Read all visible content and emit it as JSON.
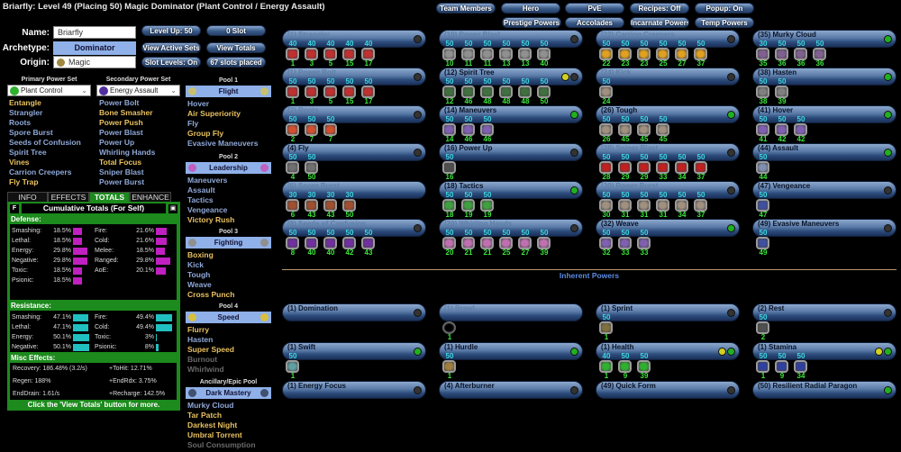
{
  "title": "Briarfly: Level 49 (Placing 50) Magic Dominator (Plant Control / Energy Assault)",
  "header": {
    "name_label": "Name:",
    "name_value": "Briarfly",
    "archetype_label": "Archetype:",
    "archetype": "Dominator",
    "origin_label": "Origin:",
    "origin": "Magic",
    "buttons": [
      "Level Up: 50",
      "0 Slot",
      "View Active Sets",
      "View Totals",
      "Slot Levels: On",
      "67 slots placed"
    ]
  },
  "top_buttons": [
    "Team Members",
    "Hero",
    "PvE",
    "Recipes: Off",
    "Popup: On",
    "Prestige Powers",
    "Accolades",
    "Incarnate Powers",
    "Temp Powers"
  ],
  "primary": {
    "header": "Primary Power Set",
    "set": "Plant Control",
    "color": "#30b030",
    "powers": [
      [
        "Entangle",
        "pick"
      ],
      [
        "Strangler",
        "avail"
      ],
      [
        "Roots",
        "avail"
      ],
      [
        "Spore Burst",
        "avail"
      ],
      [
        "Seeds of Confusion",
        "avail"
      ],
      [
        "Spirit Tree",
        "avail"
      ],
      [
        "Vines",
        "pick"
      ],
      [
        "Carrion Creepers",
        "avail"
      ],
      [
        "Fly Trap",
        "pick"
      ]
    ]
  },
  "secondary": {
    "header": "Secondary Power Set",
    "set": "Energy Assault",
    "color": "#5030a0",
    "powers": [
      [
        "Power Bolt",
        "avail"
      ],
      [
        "Bone Smasher",
        "pick"
      ],
      [
        "Power Push",
        "pick"
      ],
      [
        "Power Blast",
        "avail"
      ],
      [
        "Power Up",
        "avail"
      ],
      [
        "Whirling Hands",
        "avail"
      ],
      [
        "Total Focus",
        "pick"
      ],
      [
        "Sniper Blast",
        "avail"
      ],
      [
        "Power Burst",
        "avail"
      ]
    ]
  },
  "pools": [
    {
      "header": "Pool 1",
      "set": "Flight",
      "icon_color": "#c8c070",
      "powers": [
        [
          "Hover",
          "avail"
        ],
        [
          "Air Superiority",
          "pick"
        ],
        [
          "Fly",
          "avail"
        ],
        [
          "Group Fly",
          "pick"
        ],
        [
          "Evasive Maneuvers",
          "avail"
        ]
      ]
    },
    {
      "header": "Pool 2",
      "set": "Leadership",
      "icon_color": "#c060c0",
      "powers": [
        [
          "Maneuvers",
          "avail"
        ],
        [
          "Assault",
          "avail"
        ],
        [
          "Tactics",
          "avail"
        ],
        [
          "Vengeance",
          "avail"
        ],
        [
          "Victory Rush",
          "pick"
        ]
      ]
    },
    {
      "header": "Pool 3",
      "set": "Fighting",
      "icon_color": "#909090",
      "powers": [
        [
          "Boxing",
          "pick"
        ],
        [
          "Kick",
          "avail"
        ],
        [
          "Tough",
          "avail"
        ],
        [
          "Weave",
          "avail"
        ],
        [
          "Cross Punch",
          "pick"
        ]
      ]
    },
    {
      "header": "Pool 4",
      "set": "Speed",
      "icon_color": "#d8c040",
      "powers": [
        [
          "Flurry",
          "pick"
        ],
        [
          "Hasten",
          "avail"
        ],
        [
          "Super Speed",
          "pick"
        ],
        [
          "Burnout",
          "na"
        ],
        [
          "Whirlwind",
          "na"
        ]
      ]
    },
    {
      "header": "Ancillary/Epic Pool",
      "set": "Dark Mastery",
      "icon_color": "#405070",
      "powers": [
        [
          "Murky Cloud",
          "avail"
        ],
        [
          "Tar Patch",
          "pick"
        ],
        [
          "Darkest Night",
          "pick"
        ],
        [
          "Umbral Torrent",
          "pick"
        ],
        [
          "Soul Consumption",
          "na"
        ]
      ]
    }
  ],
  "tabs": [
    "INFO",
    "EFFECTS",
    "TOTALS",
    "ENHANCE"
  ],
  "totals": {
    "title": "Cumulative Totals (For Self)",
    "f_button": "F",
    "defense_label": "Defense:",
    "resistance_label": "Resistance:",
    "misc_label": "Misc Effects:",
    "footer": "Click the 'View Totals' button for more.",
    "defense_color": "#c020c0",
    "resistance_color": "#20c0c0",
    "defense": [
      [
        "Smashing:",
        "18.5%",
        18.5
      ],
      [
        "Lethal:",
        "18.5%",
        18.5
      ],
      [
        "Energy:",
        "29.8%",
        29.8
      ],
      [
        "Negative:",
        "29.8%",
        29.8
      ],
      [
        "Toxic:",
        "18.5%",
        18.5
      ],
      [
        "Psionic:",
        "18.5%",
        18.5
      ],
      [
        "Fire:",
        "21.6%",
        21.6
      ],
      [
        "Cold:",
        "21.6%",
        21.6
      ],
      [
        "Melee:",
        "18.5%",
        18.5
      ],
      [
        "Ranged:",
        "29.8%",
        29.8
      ],
      [
        "AoE:",
        "20.1%",
        20.1
      ]
    ],
    "resistance": [
      [
        "Smashing:",
        "47.1%",
        47.1
      ],
      [
        "Lethal:",
        "47.1%",
        47.1
      ],
      [
        "Energy:",
        "50.1%",
        50.1
      ],
      [
        "Negative:",
        "50.1%",
        50.1
      ],
      [
        "Fire:",
        "49.4%",
        49.4
      ],
      [
        "Cold:",
        "49.4%",
        49.4
      ],
      [
        "Toxic:",
        "3%",
        3
      ],
      [
        "Psionic:",
        "8%",
        8
      ]
    ],
    "misc": [
      "Recovery: 186.48% (3.2/s)",
      "+ToHit: 12.71%",
      "Regen: 188%",
      "+EndRdx: 3.75%",
      "EndDrain: 1.61/s",
      "+Recharge: 142.5%"
    ]
  },
  "inherent_label": "Inherent Powers",
  "power_slots": [
    {
      "name": "(1) Strangler",
      "dim": true,
      "ind": [
        "#333"
      ],
      "color": "#c03030",
      "slots": [
        [
          40,
          1
        ],
        [
          40,
          3
        ],
        [
          40,
          5
        ],
        [
          40,
          15
        ],
        [
          40,
          17
        ]
      ]
    },
    {
      "name": "(1) Power Bolt",
      "dim": true,
      "ind": [
        "#333"
      ],
      "color": "#c03030",
      "slots": [
        [
          50,
          1
        ],
        [
          50,
          3
        ],
        [
          50,
          5
        ],
        [
          50,
          15
        ],
        [
          50,
          17
        ]
      ]
    },
    {
      "name": "(2) Roots",
      "dim": true,
      "ind": [
        "#333"
      ],
      "color": "#d05030",
      "slots": [
        [
          50,
          2
        ],
        [
          50,
          7
        ],
        [
          50,
          7
        ]
      ]
    },
    {
      "name": "(4) Fly",
      "dim": false,
      "ind": [
        "#333"
      ],
      "color": "#707070",
      "slots": [
        [
          50,
          4
        ],
        [
          50,
          50
        ]
      ]
    },
    {
      "name": "(6) Spore Burst",
      "dim": true,
      "ind": [],
      "color": "#a05030",
      "slots": [
        [
          30,
          6
        ],
        [
          30,
          43
        ],
        [
          30,
          43
        ],
        [
          30,
          50
        ]
      ]
    },
    {
      "name": "(8) Seeds of Confusion",
      "dim": true,
      "ind": [
        "#333"
      ],
      "color": "#7030a0",
      "slots": [
        [
          50,
          8
        ],
        [
          50,
          40
        ],
        [
          50,
          40
        ],
        [
          50,
          42
        ],
        [
          50,
          43
        ]
      ]
    },
    {
      "name": "(10) Power Blast",
      "dim": true,
      "ind": [
        "#333"
      ],
      "color": "#909090",
      "slots": [
        [
          50,
          10
        ],
        [
          50,
          11
        ],
        [
          50,
          11
        ],
        [
          50,
          13
        ],
        [
          50,
          13
        ],
        [
          50,
          40
        ]
      ]
    },
    {
      "name": "(12) Spirit Tree",
      "dim": false,
      "ind": [
        "#d0d020",
        "#333"
      ],
      "color": "#407040",
      "slots": [
        [
          50,
          12
        ],
        [
          50,
          46
        ],
        [
          50,
          48
        ],
        [
          50,
          48
        ],
        [
          50,
          48
        ],
        [
          50,
          50
        ]
      ]
    },
    {
      "name": "(14) Maneuvers",
      "dim": false,
      "ind": [
        "#20b020"
      ],
      "color": "#8060b0",
      "slots": [
        [
          50,
          14
        ],
        [
          50,
          46
        ],
        [
          50,
          46
        ]
      ]
    },
    {
      "name": "(16) Power Up",
      "dim": false,
      "ind": [
        "#333"
      ],
      "color": "#505050",
      "slots": [
        [
          50,
          16
        ]
      ]
    },
    {
      "name": "(18) Tactics",
      "dim": false,
      "ind": [
        "#20b020"
      ],
      "color": "#40a040",
      "slots": [
        [
          50,
          18
        ],
        [
          50,
          19
        ],
        [
          50,
          19
        ]
      ]
    },
    {
      "name": "(20) Whirling Hands",
      "dim": true,
      "ind": [
        "#333"
      ],
      "color": "#c070b0",
      "slots": [
        [
          50,
          20
        ],
        [
          50,
          21
        ],
        [
          50,
          21
        ],
        [
          50,
          25
        ],
        [
          50,
          27
        ],
        [
          50,
          39
        ]
      ]
    },
    {
      "name": "(22) Carrion Creepers",
      "dim": true,
      "ind": [
        "#333"
      ],
      "color": "#e0a020",
      "slots": [
        [
          50,
          22
        ],
        [
          50,
          23
        ],
        [
          50,
          23
        ],
        [
          50,
          25
        ],
        [
          50,
          27
        ],
        [
          50,
          37
        ]
      ]
    },
    {
      "name": "(24) Kick",
      "dim": true,
      "ind": [
        "#333"
      ],
      "color": "#a09080",
      "slots": [
        [
          50,
          24
        ]
      ]
    },
    {
      "name": "(26) Tough",
      "dim": false,
      "ind": [
        "#20b020"
      ],
      "color": "#a09080",
      "slots": [
        [
          50,
          26
        ],
        [
          50,
          45
        ],
        [
          50,
          45
        ],
        [
          50,
          45
        ]
      ]
    },
    {
      "name": "(28) Sniper Blast",
      "dim": true,
      "ind": [
        "#333"
      ],
      "color": "#c02020",
      "slots": [
        [
          50,
          28
        ],
        [
          50,
          29
        ],
        [
          50,
          29
        ],
        [
          50,
          33
        ],
        [
          50,
          34
        ],
        [
          50,
          37
        ]
      ]
    },
    {
      "name": "(30) Power Burst",
      "dim": true,
      "ind": [
        "#333"
      ],
      "color": "#a09080",
      "slots": [
        [
          50,
          30
        ],
        [
          50,
          31
        ],
        [
          50,
          31
        ],
        [
          50,
          31
        ],
        [
          50,
          34
        ],
        [
          50,
          37
        ]
      ]
    },
    {
      "name": "(32) Weave",
      "dim": false,
      "ind": [
        "#20b020"
      ],
      "color": "#8060b0",
      "slots": [
        [
          50,
          32
        ],
        [
          50,
          33
        ],
        [
          50,
          33
        ]
      ]
    },
    {
      "name": "(35) Murky Cloud",
      "dim": false,
      "ind": [
        "#20b020"
      ],
      "color": "#806090",
      "slots": [
        [
          30,
          35
        ],
        [
          50,
          36
        ],
        [
          50,
          36
        ],
        [
          50,
          36
        ]
      ]
    },
    {
      "name": "(38) Hasten",
      "dim": false,
      "ind": [
        "#20b020"
      ],
      "color": "#808080",
      "slots": [
        [
          50,
          38
        ],
        [
          50,
          39
        ]
      ]
    },
    {
      "name": "(41) Hover",
      "dim": false,
      "ind": [
        "#20b020"
      ],
      "color": "#8060b0",
      "slots": [
        [
          50,
          41
        ],
        [
          50,
          42
        ],
        [
          50,
          42
        ]
      ]
    },
    {
      "name": "(44) Assault",
      "dim": false,
      "ind": [
        "#20b020"
      ],
      "color": "#8090b0",
      "slots": [
        [
          50,
          44
        ]
      ]
    },
    {
      "name": "(47) Vengeance",
      "dim": false,
      "ind": [
        "#333"
      ],
      "color": "#4050a0",
      "slots": [
        [
          50,
          47
        ]
      ]
    },
    {
      "name": "(49) Evasive Maneuvers",
      "dim": false,
      "ind": [
        "#333"
      ],
      "color": "#4050a0",
      "slots": [
        [
          50,
          49
        ]
      ]
    }
  ],
  "inherent_slots": [
    {
      "name": "(1) Domination",
      "dim": false,
      "ind": [
        "#333"
      ],
      "color": "#505050",
      "slots": []
    },
    {
      "name": "(1) Brawl",
      "dim": true,
      "ind": [],
      "color": "#000",
      "slots": [
        [
          "",
          1
        ]
      ]
    },
    {
      "name": "(1) Sprint",
      "dim": false,
      "ind": [
        "#333"
      ],
      "color": "#807040",
      "slots": [
        [
          50,
          1
        ]
      ]
    },
    {
      "name": "(2) Rest",
      "dim": false,
      "ind": [
        "#333"
      ],
      "color": "#505050",
      "slots": [
        [
          50,
          2
        ]
      ]
    },
    {
      "name": "(1) Swift",
      "dim": false,
      "ind": [
        "#20b020"
      ],
      "color": "#60a0a0",
      "slots": [
        [
          50,
          1
        ]
      ]
    },
    {
      "name": "(1) Hurdle",
      "dim": false,
      "ind": [
        "#20b020"
      ],
      "color": "#a08040",
      "slots": [
        [
          50,
          1
        ]
      ]
    },
    {
      "name": "(1) Health",
      "dim": false,
      "ind": [
        "#d0d020",
        "#20b020"
      ],
      "color": "#30b030",
      "slots": [
        [
          40,
          1
        ],
        [
          50,
          9
        ],
        [
          50,
          39
        ]
      ]
    },
    {
      "name": "(1) Stamina",
      "dim": false,
      "ind": [
        "#d0d020",
        "#20b020"
      ],
      "color": "#3040a0",
      "slots": [
        [
          50,
          1
        ],
        [
          50,
          9
        ],
        [
          50,
          34
        ]
      ]
    },
    {
      "name": "(1) Energy Focus",
      "dim": false,
      "ind": [
        "#333"
      ],
      "color": "#000",
      "slots": []
    },
    {
      "name": "(4) Afterburner",
      "dim": false,
      "ind": [
        "#333"
      ],
      "color": "#000",
      "slots": []
    },
    {
      "name": "(49) Quick Form",
      "dim": false,
      "ind": [
        "#333"
      ],
      "color": "#000",
      "slots": []
    },
    {
      "name": "(50) Resilient Radial Paragon",
      "dim": false,
      "ind": [
        "#20b020"
      ],
      "color": "#000",
      "slots": []
    }
  ]
}
